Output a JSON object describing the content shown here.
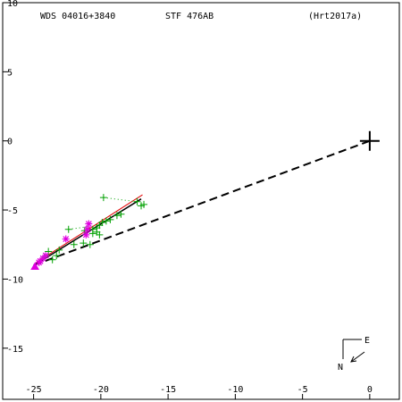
{
  "chart_data": {
    "type": "scatter",
    "header": {
      "left": "WDS 04016+3840",
      "center": "STF 476AB",
      "right": "(Hrt2017a)"
    },
    "xlim": [
      -27.3,
      2.2
    ],
    "ylim": [
      18.7,
      -10
    ],
    "x_ticks": [
      -25,
      -20,
      -15,
      -10,
      -5,
      0
    ],
    "y_ticks": [
      -10,
      -5,
      0,
      5,
      10,
      15
    ],
    "x_tick_labels": [
      "-25",
      "-20",
      "-15",
      "-10",
      "-5",
      "0"
    ],
    "y_tick_labels": [
      "10",
      "5",
      "0",
      "-5",
      "-10",
      "-15"
    ],
    "primary": {
      "x": 0,
      "y": 0,
      "marker": "plus"
    },
    "series": [
      {
        "marker": "plus",
        "color": "#00a000",
        "points": [
          [
            -19.8,
            4.1
          ],
          [
            -17.3,
            4.4
          ],
          [
            -16.8,
            4.6
          ],
          [
            -17.0,
            4.7
          ],
          [
            -18.5,
            5.3
          ],
          [
            -18.8,
            5.4
          ],
          [
            -19.3,
            5.7
          ],
          [
            -19.6,
            5.8
          ],
          [
            -19.9,
            5.9
          ],
          [
            -20.1,
            6.1
          ],
          [
            -20.3,
            6.3
          ],
          [
            -20.6,
            6.4
          ],
          [
            -20.3,
            6.6
          ],
          [
            -20.6,
            6.7
          ],
          [
            -20.1,
            6.8
          ],
          [
            -21.2,
            6.5
          ],
          [
            -22.4,
            6.4
          ],
          [
            -22.0,
            7.5
          ],
          [
            -20.8,
            7.5
          ],
          [
            -21.3,
            7.4
          ],
          [
            -23.1,
            7.9
          ],
          [
            -23.3,
            8.3
          ],
          [
            -23.6,
            8.6
          ],
          [
            -23.9,
            8.0
          ],
          [
            -24.2,
            8.4
          ]
        ]
      },
      {
        "marker": "asterisk",
        "color": "#e000e0",
        "points": [
          [
            -20.9,
            6.0
          ],
          [
            -21.0,
            6.4
          ],
          [
            -21.1,
            6.8
          ],
          [
            -22.6,
            7.1
          ],
          [
            -24.1,
            8.3
          ],
          [
            -24.3,
            8.5
          ],
          [
            -24.5,
            8.7
          ],
          [
            -24.6,
            8.8
          ]
        ]
      },
      {
        "marker": "triangle",
        "color": "#e000e0",
        "points": [
          [
            -24.9,
            9.1
          ]
        ]
      }
    ],
    "lines": [
      {
        "style": "dashed",
        "color": "#000000",
        "width": 2,
        "points": [
          [
            -25.0,
            9.0
          ],
          [
            0,
            0
          ]
        ]
      },
      {
        "style": "solid",
        "color": "#000000",
        "width": 1.5,
        "points": [
          [
            -24.8,
            8.9
          ],
          [
            -17.0,
            4.2
          ]
        ]
      },
      {
        "style": "solid",
        "color": "#e00000",
        "width": 1,
        "points": [
          [
            -24.8,
            8.8
          ],
          [
            -16.9,
            3.9
          ]
        ]
      },
      {
        "style": "dotted",
        "color": "#00a000",
        "width": 1,
        "points": [
          [
            -19.8,
            4.1
          ],
          [
            -17.3,
            4.4
          ]
        ]
      },
      {
        "style": "dotted",
        "color": "#00a000",
        "width": 1,
        "points": [
          [
            -22.4,
            6.4
          ],
          [
            -20.9,
            6.2
          ]
        ]
      }
    ],
    "compass": {
      "east_label": "E",
      "north_label": "N"
    }
  }
}
